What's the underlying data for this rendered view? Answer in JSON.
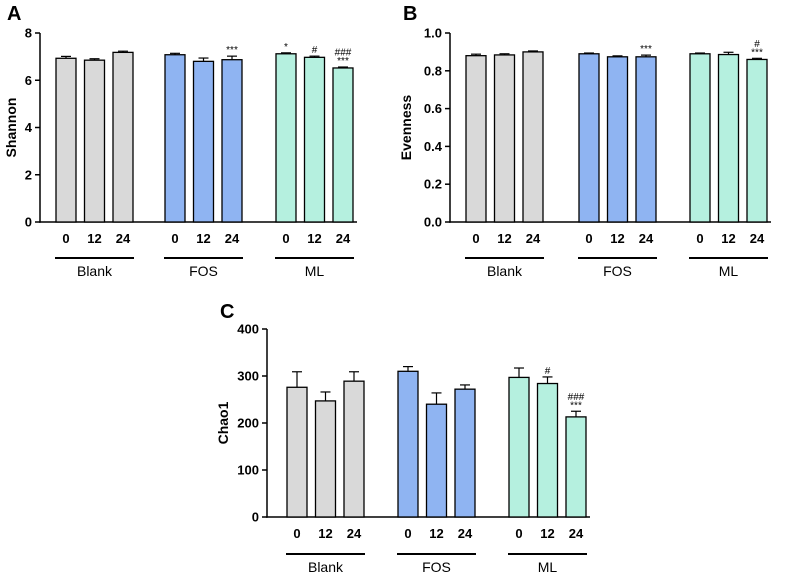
{
  "colors": {
    "Blank": "#d9d9d9",
    "FOS": "#8fb4f2",
    "ML": "#b5f0df",
    "stroke": "#000000"
  },
  "chart_data": [
    {
      "panel_label": "A",
      "type": "bar",
      "ylabel": "Shannon",
      "ylim": [
        0,
        8
      ],
      "yticks": [
        "0",
        "2",
        "4",
        "6",
        "8"
      ],
      "groups": [
        "Blank",
        "FOS",
        "ML"
      ],
      "categories": [
        "0",
        "12",
        "24"
      ],
      "series": [
        {
          "name": "Blank",
          "values": [
            6.93,
            6.85,
            7.18
          ],
          "errors": [
            0.08,
            0.06,
            0.05
          ],
          "sig": [
            "",
            "",
            ""
          ]
        },
        {
          "name": "FOS",
          "values": [
            7.08,
            6.8,
            6.87
          ],
          "errors": [
            0.06,
            0.14,
            0.15
          ],
          "sig": [
            "",
            "",
            "***"
          ]
        },
        {
          "name": "ML",
          "values": [
            7.12,
            6.97,
            6.52
          ],
          "errors": [
            0.04,
            0.05,
            0.04
          ],
          "sig": [
            "*",
            "#",
            "###\n***"
          ]
        }
      ]
    },
    {
      "panel_label": "B",
      "type": "bar",
      "ylabel": "Evenness",
      "ylim": [
        0,
        1.0
      ],
      "yticks": [
        "0.0",
        "0.2",
        "0.4",
        "0.6",
        "0.8",
        "1.0"
      ],
      "groups": [
        "Blank",
        "FOS",
        "ML"
      ],
      "categories": [
        "0",
        "12",
        "24"
      ],
      "series": [
        {
          "name": "Blank",
          "values": [
            0.88,
            0.884,
            0.9
          ],
          "errors": [
            0.008,
            0.006,
            0.005
          ],
          "sig": [
            "",
            "",
            ""
          ]
        },
        {
          "name": "FOS",
          "values": [
            0.89,
            0.874,
            0.874
          ],
          "errors": [
            0.004,
            0.005,
            0.009
          ],
          "sig": [
            "",
            "",
            "***"
          ]
        },
        {
          "name": "ML",
          "values": [
            0.89,
            0.886,
            0.86
          ],
          "errors": [
            0.004,
            0.012,
            0.006
          ],
          "sig": [
            "",
            "",
            "#\n***"
          ]
        }
      ]
    },
    {
      "panel_label": "C",
      "type": "bar",
      "ylabel": "Chao1",
      "ylim": [
        0,
        400
      ],
      "yticks": [
        "0",
        "100",
        "200",
        "300",
        "400"
      ],
      "groups": [
        "Blank",
        "FOS",
        "ML"
      ],
      "categories": [
        "0",
        "12",
        "24"
      ],
      "series": [
        {
          "name": "Blank",
          "values": [
            276,
            247,
            289
          ],
          "errors": [
            33,
            19,
            20
          ],
          "sig": [
            "",
            "",
            ""
          ]
        },
        {
          "name": "FOS",
          "values": [
            310,
            240,
            272
          ],
          "errors": [
            10,
            24,
            9
          ],
          "sig": [
            "",
            "",
            ""
          ]
        },
        {
          "name": "ML",
          "values": [
            297,
            284,
            213
          ],
          "errors": [
            20,
            14,
            12
          ],
          "sig": [
            "",
            "#",
            "###\n***"
          ]
        }
      ]
    }
  ]
}
